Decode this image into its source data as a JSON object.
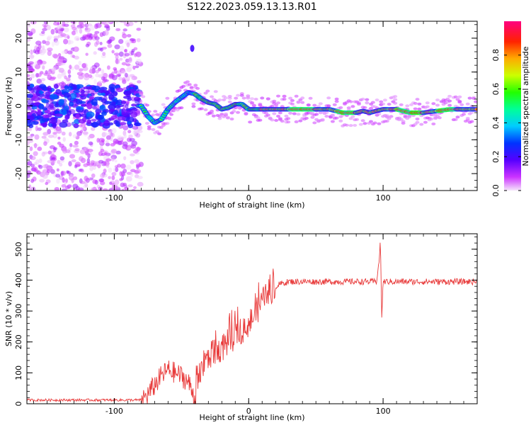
{
  "title": "S122.2023.059.13.13.R01",
  "colors": {
    "snr_line": "#e83a3a",
    "axis": "#000000",
    "background": "#ffffff"
  },
  "chart_data": [
    {
      "type": "heatmap",
      "name": "spectrogram",
      "xlabel": "Height of straight line (km)",
      "ylabel": "Frequency (Hz)",
      "xlim": [
        -165,
        170
      ],
      "ylim": [
        -25,
        25
      ],
      "x_ticks": [
        -100,
        0,
        100
      ],
      "x_tick_labels": [
        "-100",
        "0",
        "100"
      ],
      "y_ticks": [
        -20,
        -10,
        0,
        10,
        20
      ],
      "y_tick_labels": [
        "-20",
        "-10",
        "0",
        "10",
        "20"
      ],
      "colorbar": {
        "label": "Normalized spectral amplitude",
        "range": [
          0,
          1
        ],
        "ticks": [
          0.0,
          0.2,
          0.4,
          0.6,
          0.8
        ],
        "tick_labels": [
          "0.0",
          "0.2",
          "0.4",
          "0.6",
          "0.8"
        ],
        "colormap": "gist_rainbow_r"
      },
      "ridge": {
        "description": "dominant frequency track vs height",
        "x": [
          -80,
          -75,
          -70,
          -65,
          -60,
          -55,
          -50,
          -45,
          -40,
          -35,
          -30,
          -25,
          -20,
          -15,
          -10,
          -5,
          0,
          10,
          20,
          40,
          60,
          70,
          80,
          85,
          90,
          95,
          100,
          110,
          120,
          130,
          140,
          150,
          160,
          170
        ],
        "y": [
          0,
          -3,
          -5,
          -4,
          -1,
          1,
          2.5,
          4,
          3.5,
          2,
          1,
          0.5,
          -1,
          -0.5,
          0.5,
          0.5,
          -1,
          -1,
          -1,
          -1,
          -1,
          -2,
          -2,
          -1.5,
          -2,
          -1.5,
          -1,
          -1,
          -2,
          -2,
          -1.5,
          -1,
          -1,
          -1
        ]
      }
    },
    {
      "type": "line",
      "name": "snr",
      "xlabel": "Height of straight line (km)",
      "ylabel": "SNR (10 * v/v)",
      "xlim": [
        -165,
        170
      ],
      "ylim": [
        0,
        550
      ],
      "x_ticks": [
        -100,
        0,
        100
      ],
      "x_tick_labels": [
        "-100",
        "0",
        "100"
      ],
      "y_ticks": [
        0,
        100,
        200,
        300,
        400,
        500
      ],
      "y_tick_labels": [
        "0",
        "100",
        "200",
        "300",
        "400",
        "500"
      ],
      "series": [
        {
          "name": "SNR",
          "x": [
            -165,
            -80,
            -75,
            -70,
            -65,
            -60,
            -55,
            -50,
            -45,
            -40,
            -35,
            -30,
            -25,
            -20,
            -15,
            -10,
            -5,
            0,
            5,
            10,
            15,
            20,
            25,
            30,
            40,
            60,
            80,
            95,
            97,
            98,
            99,
            100,
            102,
            110,
            130,
            150,
            170
          ],
          "y": [
            12,
            12,
            30,
            60,
            90,
            110,
            100,
            90,
            70,
            20,
            120,
            150,
            170,
            180,
            200,
            220,
            240,
            260,
            290,
            330,
            360,
            380,
            390,
            395,
            395,
            395,
            395,
            395,
            460,
            530,
            280,
            395,
            395,
            395,
            395,
            395,
            395
          ]
        }
      ]
    }
  ]
}
